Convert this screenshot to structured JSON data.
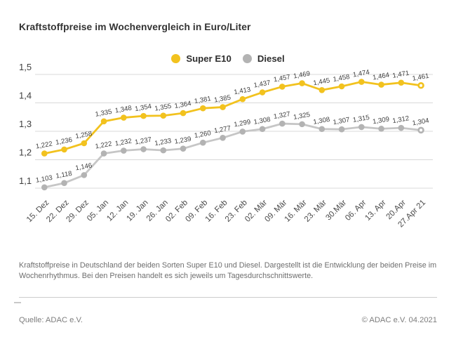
{
  "chart_data": {
    "type": "line",
    "title": "Kraftstoffpreise im Wochenvergleich in Euro/Liter",
    "unit": "Euro/Liter",
    "grid": "horizontal",
    "legend_position": "top-center",
    "categories": [
      "15. Dez",
      "22. Dez",
      "29. Dez",
      "05. Jan",
      "12. Jan",
      "19. Jan",
      "26. Jan",
      "02. Feb",
      "09. Feb",
      "16. Feb",
      "23. Feb",
      "02. Mär",
      "09. Mär",
      "16. Mär",
      "23. Mär",
      "30.Mär",
      "06. Apr",
      "13. Apr",
      "20.Apr",
      "27.Apr 21"
    ],
    "series": [
      {
        "name": "Super E10",
        "color": "#F2C21E",
        "dot_color": "#F2C21E",
        "values": [
          1.222,
          1.236,
          1.258,
          1.335,
          1.348,
          1.354,
          1.355,
          1.364,
          1.381,
          1.385,
          1.413,
          1.437,
          1.457,
          1.469,
          1.445,
          1.458,
          1.474,
          1.464,
          1.471,
          1.461
        ]
      },
      {
        "name": "Diesel",
        "color": "#C6C6C6",
        "dot_color": "#B3B3B3",
        "values": [
          1.103,
          1.118,
          1.146,
          1.222,
          1.232,
          1.237,
          1.233,
          1.239,
          1.26,
          1.277,
          1.299,
          1.308,
          1.327,
          1.325,
          1.308,
          1.307,
          1.315,
          1.309,
          1.312,
          1.304
        ]
      }
    ],
    "ylim": [
      1.1,
      1.5
    ],
    "yticks": [
      1.5,
      1.4,
      1.3,
      1.2,
      1.1
    ],
    "ytick_labels": [
      "1,5",
      "1,4",
      "1,3",
      "1,2",
      "1,1"
    ],
    "value_labels_format": "de-comma",
    "label_color": "#3e3e3e",
    "grid_color": "#d9d9d9"
  },
  "footer": {
    "note_lines": [
      "Kraftstoffpreise in Deutschland der beiden Sorten Super E10 und Diesel. Dargestellt ist die Entwicklung der beiden Preise im",
      "Wochenrhythmus. Bei den Preisen handelt es sich jeweils um Tagesdurchschnittswerte."
    ],
    "source": "Quelle: ADAC e.V.",
    "copyright": "© ADAC e.V. 04.2021"
  }
}
